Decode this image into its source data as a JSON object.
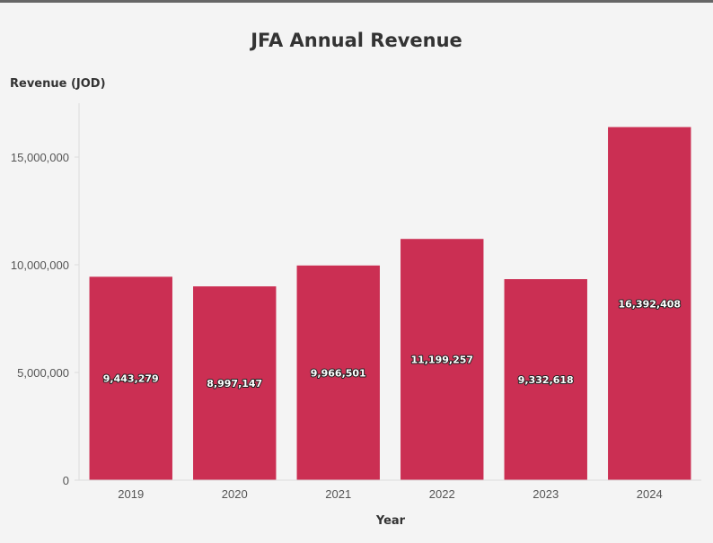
{
  "chart_data": {
    "type": "bar",
    "title": "JFA Annual Revenue",
    "xlabel": "Year",
    "ylabel": "Revenue (JOD)",
    "categories": [
      "2019",
      "2020",
      "2021",
      "2022",
      "2023",
      "2024"
    ],
    "values": [
      9443279,
      8997147,
      9966501,
      11199257,
      9332618,
      16392408
    ],
    "value_labels": [
      "9,443,279",
      "8,997,147",
      "9,966,501",
      "11,199,257",
      "9,332,618",
      "16,392,408"
    ],
    "y_ticks": [
      0,
      5000000,
      10000000,
      15000000
    ],
    "y_tick_labels": [
      "0",
      "5,000,000",
      "10,000,000",
      "15,000,000"
    ],
    "ylim": [
      0,
      17500000
    ],
    "grid": false,
    "legend": "none",
    "colors": {
      "bar": "#cb2f53",
      "background": "#f4f4f4",
      "axis": "#dddddd"
    }
  }
}
